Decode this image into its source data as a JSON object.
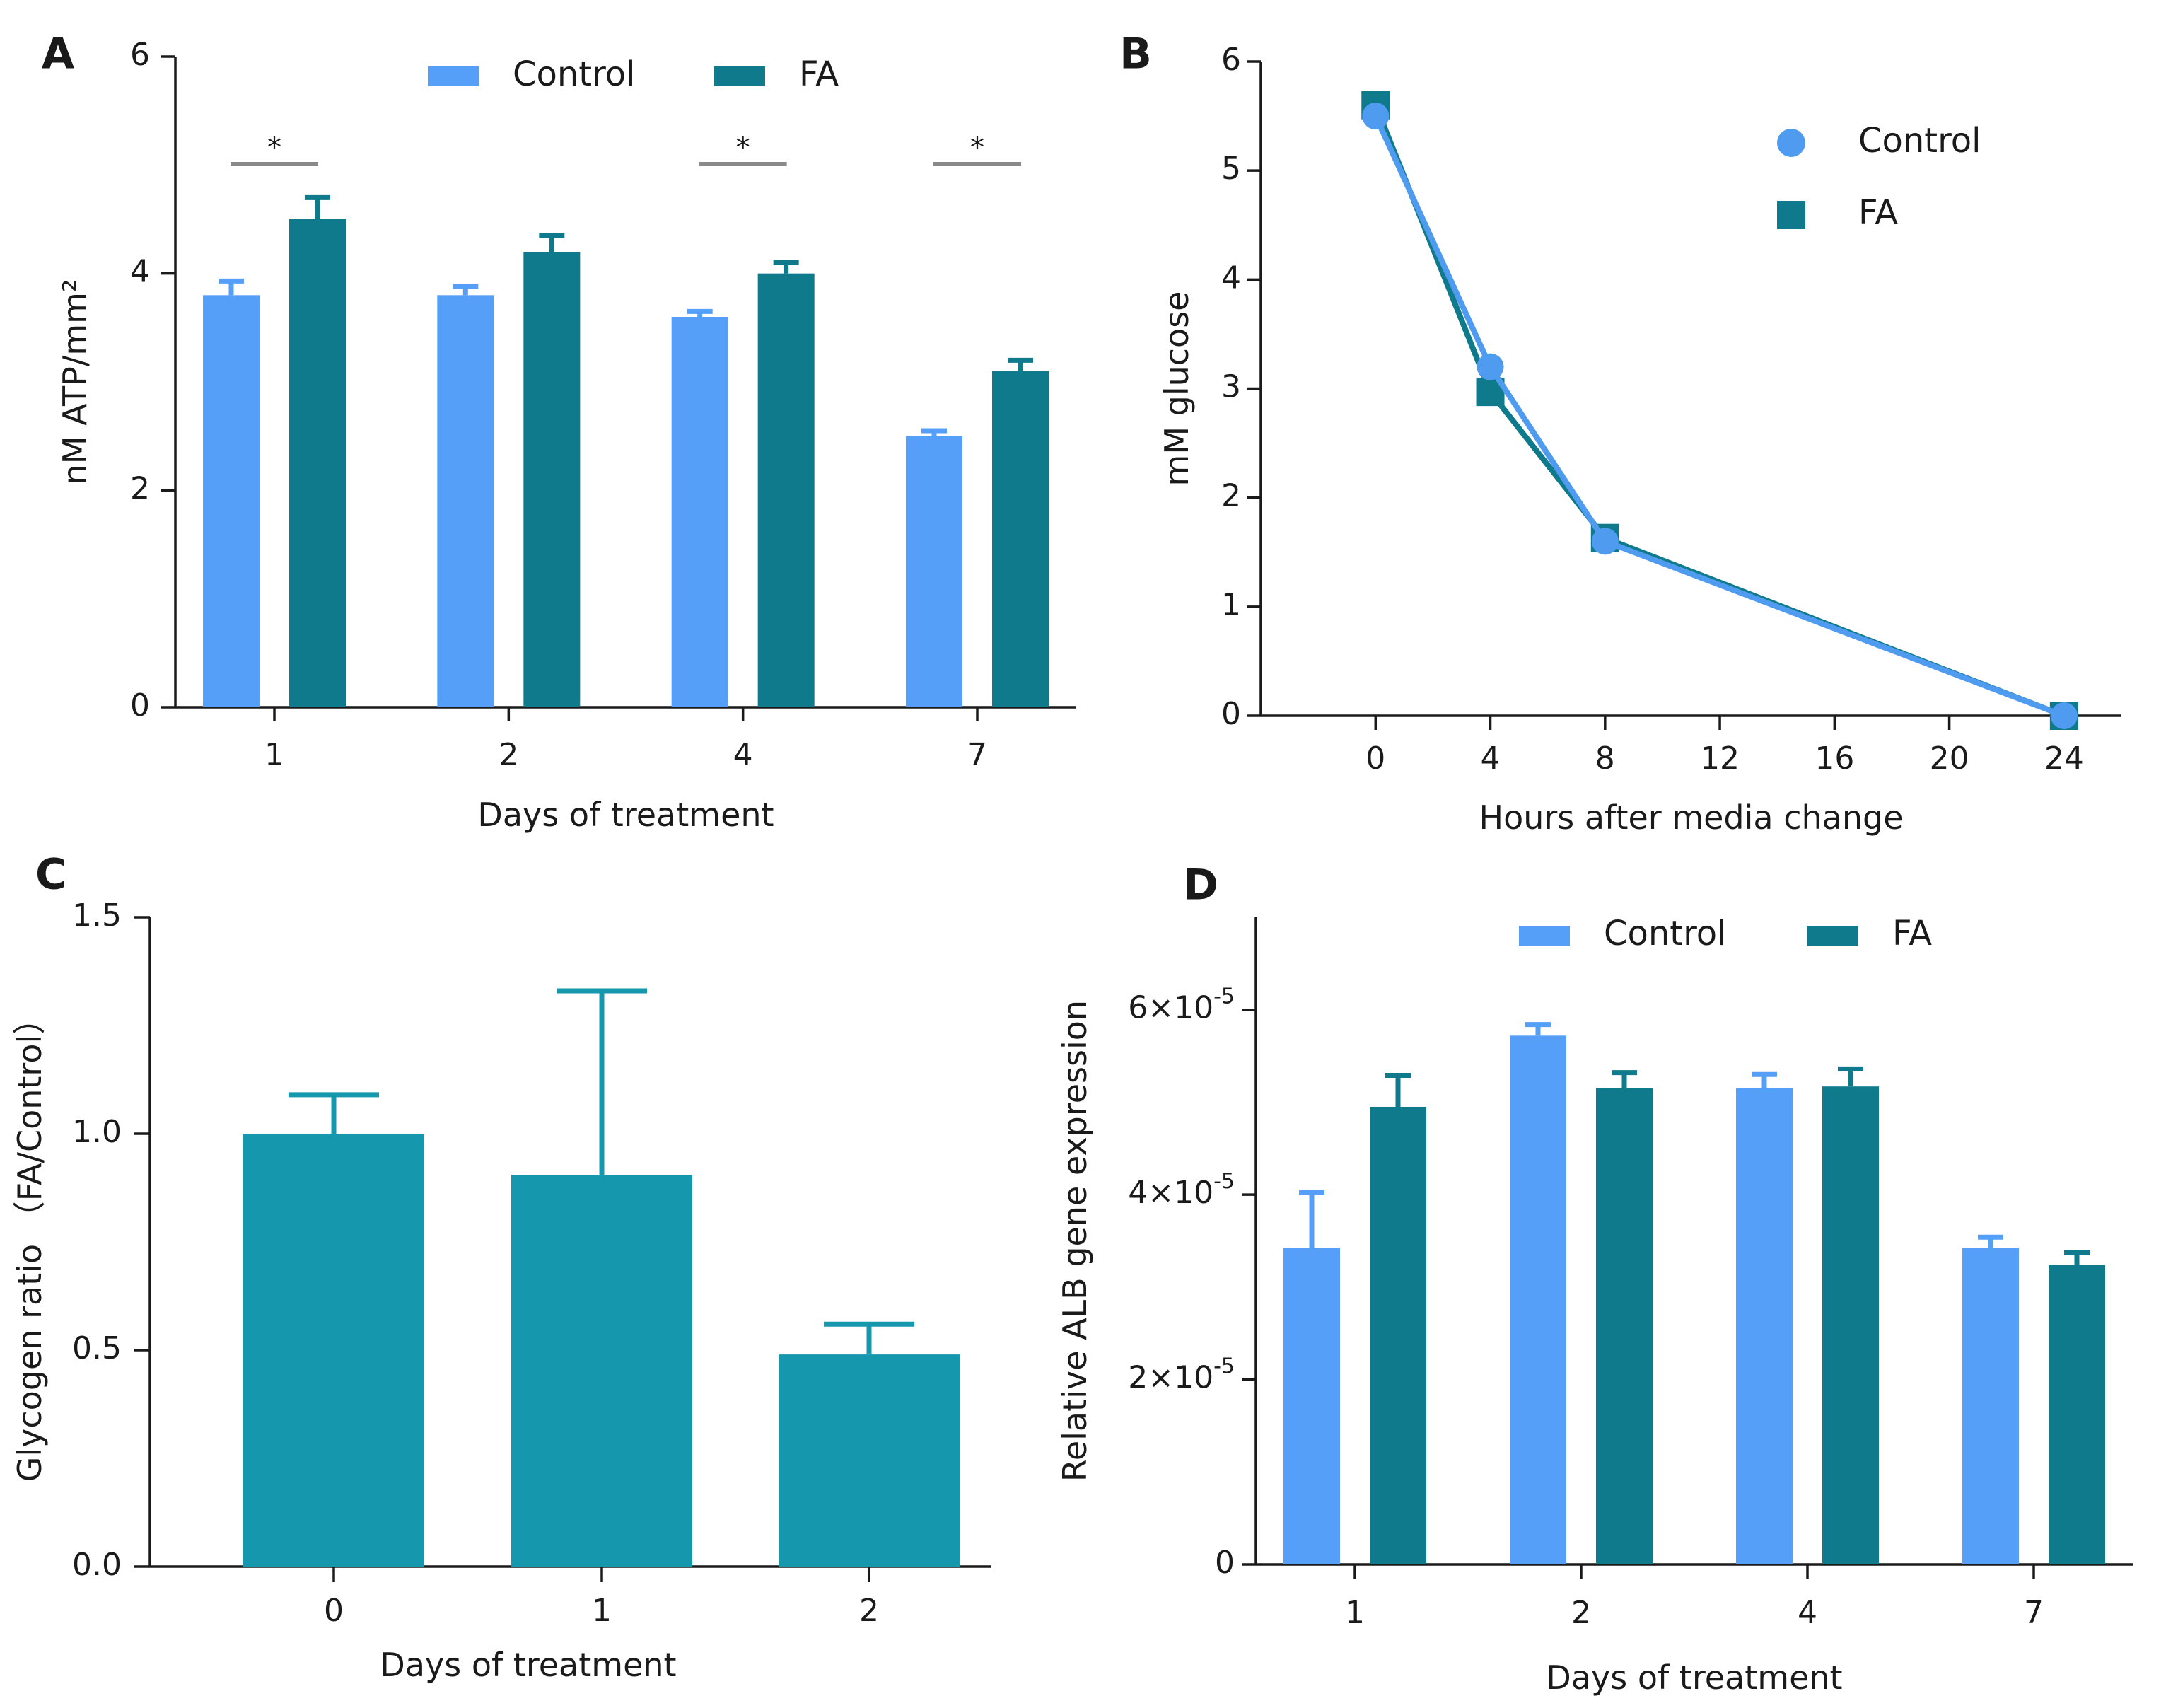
{
  "chart_data": [
    {
      "panel": "A",
      "type": "bar",
      "xlabel": "Days of treatment",
      "ylabel": "nM ATP/mm²",
      "ylim": [
        0,
        6
      ],
      "yticks": [
        0,
        2,
        4,
        6
      ],
      "categories": [
        "1",
        "2",
        "4",
        "7"
      ],
      "series": [
        {
          "name": "Control",
          "color": "#559ff8",
          "values": [
            3.8,
            3.8,
            3.6,
            2.5
          ],
          "errors": [
            0.13,
            0.08,
            0.05,
            0.05
          ]
        },
        {
          "name": "FA",
          "color": "#0e7a8c",
          "values": [
            4.5,
            4.2,
            4.0,
            3.1
          ],
          "errors": [
            0.2,
            0.15,
            0.1,
            0.1
          ]
        }
      ],
      "significance": [
        {
          "category": "1",
          "label": "*"
        },
        {
          "category": "4",
          "label": "*"
        },
        {
          "category": "7",
          "label": "*"
        }
      ],
      "legend_position": "top"
    },
    {
      "panel": "B",
      "type": "line",
      "xlabel": "Hours after media change",
      "ylabel": "mM glucose",
      "xlim": [
        -4,
        26
      ],
      "ylim": [
        0,
        6
      ],
      "xticks": [
        0,
        4,
        8,
        12,
        16,
        20,
        24
      ],
      "yticks": [
        0,
        1,
        2,
        3,
        4,
        5,
        6
      ],
      "series": [
        {
          "name": "Control",
          "marker": "circle",
          "color": "#4f9bf0",
          "x": [
            0,
            4,
            8,
            24
          ],
          "y": [
            5.5,
            3.2,
            1.6,
            0.0
          ]
        },
        {
          "name": "FA",
          "marker": "square",
          "color": "#0e7a8c",
          "x": [
            0,
            4,
            8,
            24
          ],
          "y": [
            5.6,
            2.97,
            1.63,
            0.0
          ]
        }
      ],
      "legend_position": "top-right"
    },
    {
      "panel": "C",
      "type": "bar",
      "xlabel": "Days of treatment",
      "ylabel": "Glycogen ratio （FA/Control）",
      "ylim": [
        0,
        1.5
      ],
      "yticks": [
        "0.0",
        "0.5",
        "1.0",
        "1.5"
      ],
      "categories": [
        "0",
        "1",
        "2"
      ],
      "series": [
        {
          "name": "FA/Control",
          "color": "#1598ad",
          "values": [
            1.0,
            0.905,
            0.49
          ],
          "errors": [
            0.09,
            0.425,
            0.07
          ]
        }
      ]
    },
    {
      "panel": "D",
      "type": "bar",
      "xlabel": "Days of treatment",
      "ylabel": "Relative ALB gene expression",
      "ylim": [
        0,
        7e-05
      ],
      "yticks": [
        {
          "value": 0,
          "base": "0",
          "exp": ""
        },
        {
          "value": 2e-05,
          "base": "2×10",
          "exp": "-5"
        },
        {
          "value": 4e-05,
          "base": "4×10",
          "exp": "-5"
        },
        {
          "value": 6e-05,
          "base": "6×10",
          "exp": "-5"
        }
      ],
      "categories": [
        "1",
        "2",
        "4",
        "7"
      ],
      "series": [
        {
          "name": "Control",
          "color": "#559ff8",
          "values": [
            3.42e-05,
            5.72e-05,
            5.15e-05,
            3.42e-05
          ],
          "errors": [
            6e-06,
            1.2e-06,
            1.5e-06,
            1.2e-06
          ]
        },
        {
          "name": "FA",
          "color": "#0e7a8c",
          "values": [
            4.95e-05,
            5.15e-05,
            5.17e-05,
            3.24e-05
          ],
          "errors": [
            3.4e-06,
            1.7e-06,
            1.9e-06,
            1.3e-06
          ]
        }
      ],
      "legend_position": "top"
    }
  ]
}
